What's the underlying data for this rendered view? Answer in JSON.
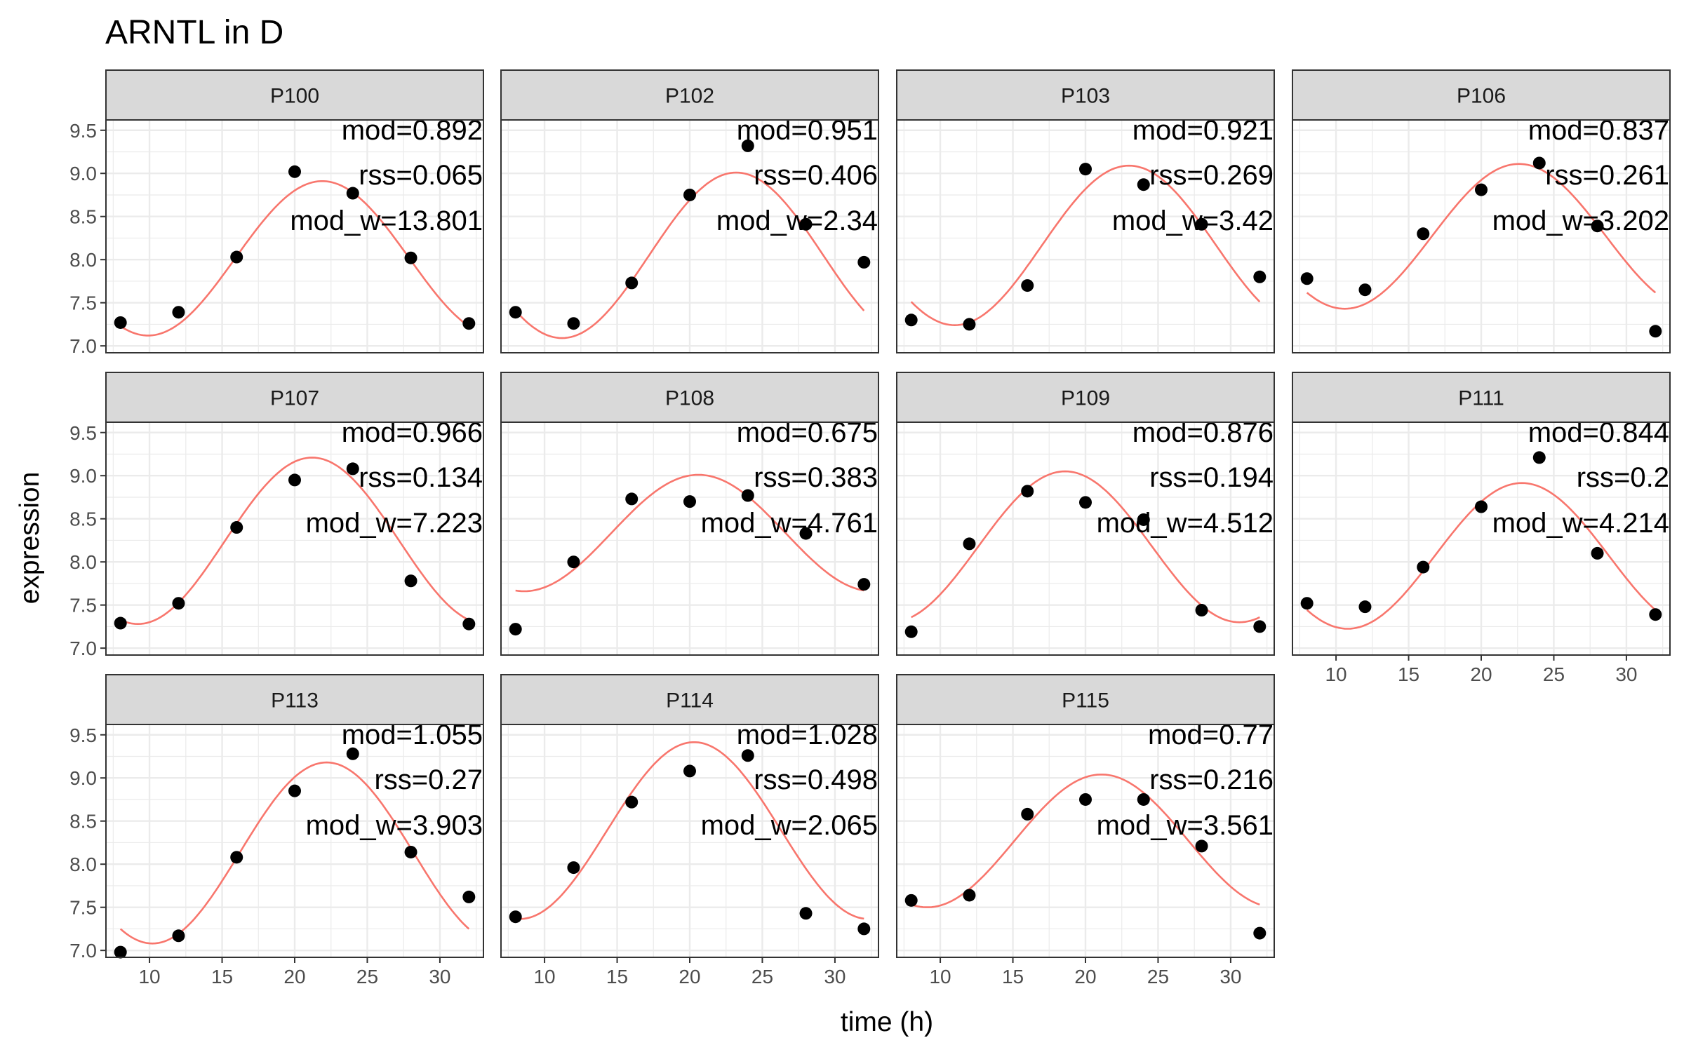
{
  "chart_data": {
    "type": "scatter",
    "title": "ARNTL in D",
    "xlabel": "time (h)",
    "ylabel": "expression",
    "xlim": [
      7,
      33
    ],
    "ylim": [
      6.92,
      9.62
    ],
    "xticks": [
      10,
      15,
      20,
      25,
      30
    ],
    "yticks": [
      7.0,
      7.5,
      8.0,
      8.5,
      9.0,
      9.5
    ],
    "x": [
      8,
      12,
      16,
      20,
      24,
      28,
      32
    ],
    "grid": true,
    "colors": {
      "points": "#000000",
      "fit": "#F8766D",
      "strip": "#d9d9d9",
      "grid": "#ebebeb"
    },
    "series": [
      {
        "panel": "P100",
        "y": [
          7.27,
          7.39,
          8.03,
          9.02,
          8.77,
          8.02,
          7.26
        ],
        "fit": {
          "mean": 8.015,
          "amp": 0.895,
          "peak": 21.9
        },
        "mod_label": "mod=0.892",
        "rss_label": "rss=0.065",
        "mod_w_label": "mod_w=13.801"
      },
      {
        "panel": "P102",
        "y": [
          7.39,
          7.26,
          7.73,
          8.75,
          9.32,
          8.41,
          7.97
        ],
        "fit": {
          "mean": 8.05,
          "amp": 0.96,
          "peak": 23.2
        },
        "mod_label": "mod=0.951",
        "rss_label": "rss=0.406",
        "mod_w_label": "mod_w=2.34"
      },
      {
        "panel": "P103",
        "y": [
          7.3,
          7.25,
          7.7,
          9.05,
          8.87,
          8.41,
          7.8
        ],
        "fit": {
          "mean": 8.165,
          "amp": 0.925,
          "peak": 23.0
        },
        "mod_label": "mod=0.921",
        "rss_label": "rss=0.269",
        "mod_w_label": "mod_w=3.42"
      },
      {
        "panel": "P106",
        "y": [
          7.78,
          7.65,
          8.3,
          8.81,
          9.12,
          8.39,
          7.17
        ],
        "fit": {
          "mean": 8.27,
          "amp": 0.84,
          "peak": 22.6
        },
        "mod_label": "mod=0.837",
        "rss_label": "rss=0.261",
        "mod_w_label": "mod_w=3.202"
      },
      {
        "panel": "P107",
        "y": [
          7.29,
          7.52,
          8.4,
          8.95,
          9.08,
          7.78,
          7.28
        ],
        "fit": {
          "mean": 8.245,
          "amp": 0.965,
          "peak": 21.2
        },
        "mod_label": "mod=0.966",
        "rss_label": "rss=0.134",
        "mod_w_label": "mod_w=7.223"
      },
      {
        "panel": "P108",
        "y": [
          7.22,
          8.0,
          8.73,
          8.7,
          8.77,
          8.33,
          7.74
        ],
        "fit": {
          "mean": 8.335,
          "amp": 0.675,
          "peak": 20.6
        },
        "mod_label": "mod=0.675",
        "rss_label": "rss=0.383",
        "mod_w_label": "mod_w=4.761"
      },
      {
        "panel": "P109",
        "y": [
          7.19,
          8.21,
          8.82,
          8.69,
          8.49,
          7.44,
          7.25
        ],
        "fit": {
          "mean": 8.175,
          "amp": 0.875,
          "peak": 18.6
        },
        "mod_label": "mod=0.876",
        "rss_label": "rss=0.194",
        "mod_w_label": "mod_w=4.512"
      },
      {
        "panel": "P111",
        "y": [
          7.52,
          7.48,
          7.94,
          8.64,
          9.21,
          8.1,
          7.39
        ],
        "fit": {
          "mean": 8.07,
          "amp": 0.845,
          "peak": 22.8
        },
        "mod_label": "mod=0.844",
        "rss_label": "rss=0.2",
        "mod_w_label": "mod_w=4.214"
      },
      {
        "panel": "P113",
        "y": [
          6.98,
          7.17,
          8.08,
          8.85,
          9.28,
          8.14,
          7.62
        ],
        "fit": {
          "mean": 8.13,
          "amp": 1.05,
          "peak": 22.2
        },
        "mod_label": "mod=1.055",
        "rss_label": "rss=0.27",
        "mod_w_label": "mod_w=3.903"
      },
      {
        "panel": "P114",
        "y": [
          7.39,
          7.96,
          8.72,
          9.08,
          9.26,
          7.43,
          7.25
        ],
        "fit": {
          "mean": 8.39,
          "amp": 1.025,
          "peak": 20.3
        },
        "mod_label": "mod=1.028",
        "rss_label": "rss=0.498",
        "mod_w_label": "mod_w=2.065"
      },
      {
        "panel": "P115",
        "y": [
          7.58,
          7.64,
          8.58,
          8.75,
          8.75,
          8.21,
          7.2
        ],
        "fit": {
          "mean": 8.27,
          "amp": 0.77,
          "peak": 21.1
        },
        "mod_label": "mod=0.77",
        "rss_label": "rss=0.216",
        "mod_w_label": "mod_w=3.561"
      }
    ]
  }
}
